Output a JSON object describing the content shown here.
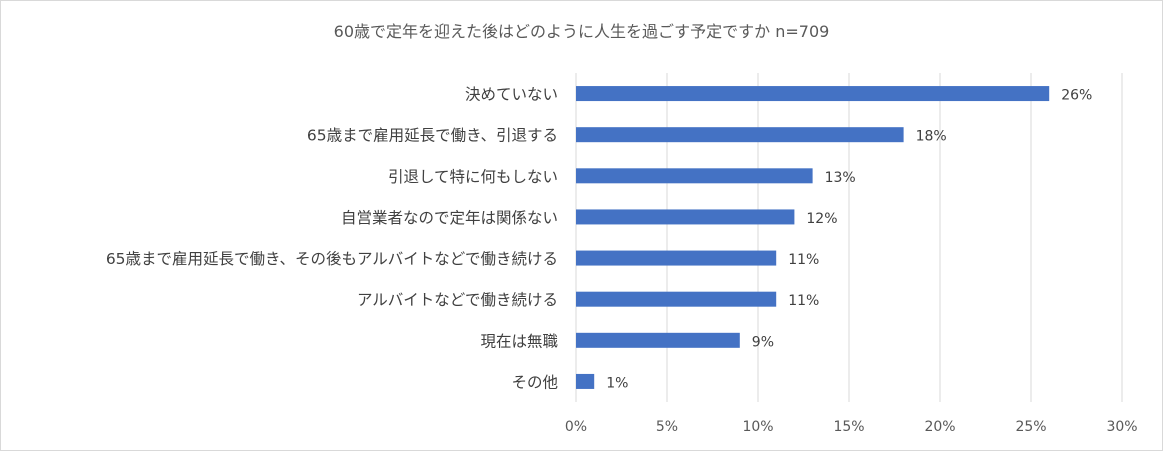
{
  "chart_data": {
    "type": "bar",
    "orientation": "horizontal",
    "title": "60歳で定年を迎えた後はどのように人生を過ごす予定ですか n=709",
    "categories": [
      "決めていない",
      "65歳まで雇用延長で働き、引退する",
      "引退して特に何もしない",
      "自営業者なので定年は関係ない",
      "65歳まで雇用延長で働き、その後もアルバイトなどで働き続ける",
      "アルバイトなどで働き続ける",
      "現在は無職",
      "その他"
    ],
    "values": [
      26,
      18,
      13,
      12,
      11,
      11,
      9,
      1
    ],
    "value_labels": [
      "26%",
      "18%",
      "13%",
      "12%",
      "11%",
      "11%",
      "9%",
      "1%"
    ],
    "xlim": [
      0,
      30
    ],
    "x_ticks": [
      0,
      5,
      10,
      15,
      20,
      25,
      30
    ],
    "x_tick_labels": [
      "0%",
      "5%",
      "10%",
      "15%",
      "20%",
      "25%",
      "30%"
    ],
    "grid": true,
    "legend": "none",
    "bar_color": "#4472C4"
  }
}
